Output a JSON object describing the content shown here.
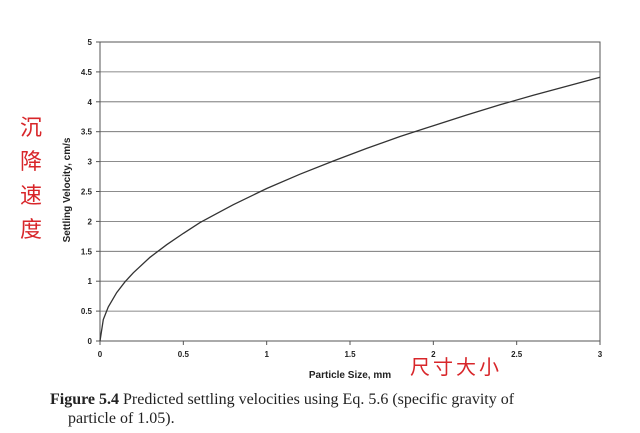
{
  "chart_data": {
    "type": "line",
    "title": "",
    "xlabel": "Particle Size, mm",
    "ylabel": "Settling Velocity, cm/s",
    "xlim": [
      0,
      3
    ],
    "ylim": [
      0,
      5
    ],
    "xticks": [
      "0",
      "0.5",
      "1",
      "1.5",
      "2",
      "2.5",
      "3"
    ],
    "yticks": [
      "0",
      "0.5",
      "1",
      "1.5",
      "2",
      "2.5",
      "3",
      "3.5",
      "4",
      "4.5",
      "5"
    ],
    "grid": "horizontal",
    "series": [
      {
        "color": "#333333",
        "x": [
          0,
          0.02,
          0.05,
          0.1,
          0.15,
          0.2,
          0.3,
          0.4,
          0.5,
          0.6,
          0.7,
          0.8,
          1.0,
          1.2,
          1.4,
          1.6,
          1.8,
          2.0,
          2.2,
          2.4,
          2.6,
          2.8,
          3.0
        ],
        "y": [
          0,
          0.36,
          0.57,
          0.81,
          0.99,
          1.14,
          1.4,
          1.61,
          1.8,
          1.98,
          2.13,
          2.28,
          2.55,
          2.79,
          3.01,
          3.22,
          3.42,
          3.6,
          3.78,
          3.95,
          4.11,
          4.26,
          4.41
        ]
      }
    ]
  },
  "caption": {
    "label": "Figure 5.4",
    "text": "Predicted settling velocities using Eq. 5.6 (specific gravity of",
    "text2": "particle of 1.05)."
  },
  "annotations": {
    "vertical_chars": [
      "沉",
      "降",
      "速",
      "度"
    ],
    "horizontal": "尺寸大小",
    "color": "#d8262a"
  }
}
